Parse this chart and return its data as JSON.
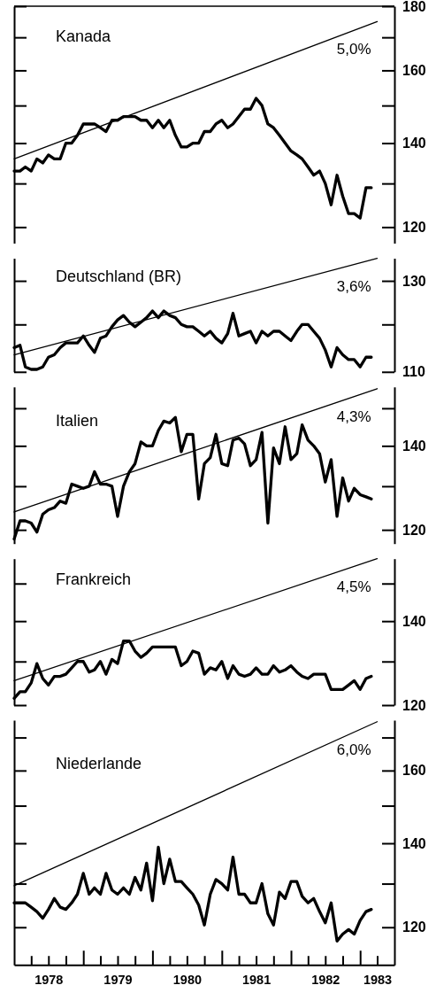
{
  "chart_data": [
    {
      "type": "line",
      "title": "Kanada",
      "log": true,
      "tick_labels": "y",
      "xlim": [
        "1978-01",
        "1983-07"
      ],
      "ylim": [
        116.5,
        180
      ],
      "yticks": [
        120,
        {
          "value": 130,
          "label": null
        },
        140,
        {
          "value": 150,
          "label": null
        },
        160,
        {
          "value": 170,
          "label": null
        },
        180
      ],
      "x": [
        "1978-01",
        "1978-02",
        "1978-03",
        "1978-04",
        "1978-05",
        "1978-06",
        "1978-07",
        "1978-08",
        "1978-09",
        "1978-10",
        "1978-11",
        "1978-12",
        "1979-01",
        "1979-02",
        "1979-03",
        "1979-04",
        "1979-05",
        "1979-06",
        "1979-07",
        "1979-08",
        "1979-09",
        "1979-10",
        "1979-11",
        "1979-12",
        "1980-01",
        "1980-02",
        "1980-03",
        "1980-04",
        "1980-05",
        "1980-06",
        "1980-07",
        "1980-08",
        "1980-09",
        "1980-10",
        "1980-11",
        "1980-12",
        "1981-01",
        "1981-02",
        "1981-03",
        "1981-04",
        "1981-05",
        "1981-06",
        "1981-07",
        "1981-08",
        "1981-09",
        "1981-10",
        "1981-11",
        "1981-12",
        "1982-01",
        "1982-02",
        "1982-03",
        "1982-04",
        "1982-05",
        "1982-06",
        "1982-07",
        "1982-08",
        "1982-09",
        "1982-10",
        "1982-11",
        "1982-12",
        "1983-01",
        "1983-02",
        "1983-03"
      ],
      "series": [
        {
          "color": "#000000",
          "values": [
            133,
            133,
            134,
            133,
            136,
            135,
            137,
            136,
            136,
            140,
            140,
            142,
            145,
            145,
            145,
            144,
            143,
            146,
            146,
            147,
            147,
            147,
            146,
            146,
            144,
            146,
            144,
            146,
            142,
            139,
            139,
            140,
            140,
            143,
            143,
            145,
            146,
            144,
            145,
            147,
            149,
            149,
            152,
            150,
            145,
            144,
            142,
            140,
            138,
            137,
            136,
            134,
            132,
            133,
            130,
            125,
            132,
            127,
            123,
            123,
            122,
            129,
            129
          ]
        },
        {
          "name": "5,0%",
          "color": "#000000",
          "x": [
            "1978-01",
            "1983-04"
          ],
          "values": [
            136,
            175
          ]
        }
      ]
    },
    {
      "type": "line",
      "title": "Deutschland (BR)",
      "log": true,
      "tick_labels": "y",
      "xlim": [
        "1978-01",
        "1983-07"
      ],
      "ylim": [
        110,
        135.5
      ],
      "yticks": [
        110,
        {
          "value": 120,
          "label": null
        },
        130
      ],
      "x": [
        "1978-01",
        "1978-02",
        "1978-03",
        "1978-04",
        "1978-05",
        "1978-06",
        "1978-07",
        "1978-08",
        "1978-09",
        "1978-10",
        "1978-11",
        "1978-12",
        "1979-01",
        "1979-02",
        "1979-03",
        "1979-04",
        "1979-05",
        "1979-06",
        "1979-07",
        "1979-08",
        "1979-09",
        "1979-10",
        "1979-11",
        "1979-12",
        "1980-01",
        "1980-02",
        "1980-03",
        "1980-04",
        "1980-05",
        "1980-06",
        "1980-07",
        "1980-08",
        "1980-09",
        "1980-10",
        "1980-11",
        "1980-12",
        "1981-01",
        "1981-02",
        "1981-03",
        "1981-04",
        "1981-05",
        "1981-06",
        "1981-07",
        "1981-08",
        "1981-09",
        "1981-10",
        "1981-11",
        "1981-12",
        "1982-01",
        "1982-02",
        "1982-03",
        "1982-04",
        "1982-05",
        "1982-06",
        "1982-07",
        "1982-08",
        "1982-09",
        "1982-10",
        "1982-11",
        "1982-12",
        "1983-01",
        "1983-02",
        "1983-03"
      ],
      "series": [
        {
          "color": "#000000",
          "values": [
            115,
            115.5,
            111,
            110.5,
            110.5,
            111,
            113,
            113.5,
            115,
            116,
            116,
            116,
            117.5,
            115.5,
            114,
            117,
            117.5,
            119.5,
            121,
            122,
            120.5,
            119.5,
            120.5,
            121.5,
            123,
            121.5,
            123,
            122,
            121.5,
            120,
            119.5,
            119.5,
            118.5,
            117.5,
            118.5,
            117,
            116,
            118,
            122.5,
            117.5,
            118,
            118.5,
            116,
            118.5,
            117.5,
            118.5,
            118.5,
            117.5,
            116.5,
            118.5,
            120,
            120,
            118.5,
            117,
            114.5,
            111,
            115,
            113.5,
            112.5,
            112.5,
            111,
            113,
            113
          ]
        },
        {
          "name": "3,6%",
          "color": "#000000",
          "x": [
            "1978-01",
            "1983-04"
          ],
          "values": [
            113.5,
            135.5
          ]
        }
      ]
    },
    {
      "type": "line",
      "title": "Italien",
      "log": true,
      "tick_labels": "y",
      "xlim": [
        "1978-01",
        "1983-07"
      ],
      "ylim": [
        117,
        156
      ],
      "yticks": [
        120,
        {
          "value": 130,
          "label": null
        },
        140,
        {
          "value": 150,
          "label": null
        }
      ],
      "x": [
        "1978-01",
        "1978-02",
        "1978-03",
        "1978-04",
        "1978-05",
        "1978-06",
        "1978-07",
        "1978-08",
        "1978-09",
        "1978-10",
        "1978-11",
        "1978-12",
        "1979-01",
        "1979-02",
        "1979-03",
        "1979-04",
        "1979-05",
        "1979-06",
        "1979-07",
        "1979-08",
        "1979-09",
        "1979-10",
        "1979-11",
        "1979-12",
        "1980-01",
        "1980-02",
        "1980-03",
        "1980-04",
        "1980-05",
        "1980-06",
        "1980-07",
        "1980-08",
        "1980-09",
        "1980-10",
        "1980-11",
        "1980-12",
        "1981-01",
        "1981-02",
        "1981-03",
        "1981-04",
        "1981-05",
        "1981-06",
        "1981-07",
        "1981-08",
        "1981-09",
        "1981-10",
        "1981-11",
        "1981-12",
        "1982-01",
        "1982-02",
        "1982-03",
        "1982-04",
        "1982-05",
        "1982-06",
        "1982-07",
        "1982-08",
        "1982-09",
        "1982-10",
        "1982-11",
        "1982-12",
        "1983-01",
        "1983-02",
        "1983-03"
      ],
      "series": [
        {
          "color": "#000000",
          "values": [
            118,
            122,
            122,
            121.5,
            119.5,
            123.5,
            124.5,
            125,
            126.5,
            126,
            130.5,
            130,
            129.5,
            130,
            133.5,
            130.5,
            130.5,
            130,
            123,
            130,
            133.5,
            135.5,
            141,
            140,
            140,
            144,
            146.5,
            146,
            147.5,
            138.5,
            143,
            143,
            127,
            135.5,
            137,
            143,
            135.5,
            135,
            141.5,
            142,
            140.5,
            135,
            136.5,
            143.5,
            121.5,
            139.5,
            135.5,
            145,
            136.5,
            138,
            145.5,
            141.5,
            140,
            138,
            131,
            136.5,
            123,
            132,
            126.5,
            129.5,
            128,
            127.5,
            127
          ]
        },
        {
          "name": "4,3%",
          "color": "#000000",
          "x": [
            "1978-01",
            "1983-04"
          ],
          "values": [
            124,
            155.5
          ]
        }
      ]
    },
    {
      "type": "line",
      "title": "Frankreich",
      "log": true,
      "tick_labels": "y",
      "xlim": [
        "1978-01",
        "1983-07"
      ],
      "ylim": [
        120,
        157
      ],
      "yticks": [
        120,
        {
          "value": 130,
          "label": null
        },
        140,
        {
          "value": 150,
          "label": null
        }
      ],
      "x": [
        "1978-01",
        "1978-02",
        "1978-03",
        "1978-04",
        "1978-05",
        "1978-06",
        "1978-07",
        "1978-08",
        "1978-09",
        "1978-10",
        "1978-11",
        "1978-12",
        "1979-01",
        "1979-02",
        "1979-03",
        "1979-04",
        "1979-05",
        "1979-06",
        "1979-07",
        "1979-08",
        "1979-09",
        "1979-10",
        "1979-11",
        "1979-12",
        "1980-01",
        "1980-02",
        "1980-03",
        "1980-04",
        "1980-05",
        "1980-06",
        "1980-07",
        "1980-08",
        "1980-09",
        "1980-10",
        "1980-11",
        "1980-12",
        "1981-01",
        "1981-02",
        "1981-03",
        "1981-04",
        "1981-05",
        "1981-06",
        "1981-07",
        "1981-08",
        "1981-09",
        "1981-10",
        "1981-11",
        "1981-12",
        "1982-01",
        "1982-02",
        "1982-03",
        "1982-04",
        "1982-05",
        "1982-06",
        "1982-07",
        "1982-08",
        "1982-09",
        "1982-10",
        "1982-11",
        "1982-12",
        "1983-01",
        "1983-02",
        "1983-03"
      ],
      "series": [
        {
          "color": "#000000",
          "values": [
            121.5,
            123,
            123,
            125,
            129.5,
            126,
            124.5,
            126.5,
            126.5,
            127,
            128.5,
            130,
            130,
            127.5,
            128,
            130,
            127,
            130.5,
            129.5,
            135,
            135,
            132.5,
            131,
            132,
            133.5,
            133.5,
            133.5,
            133.5,
            133.5,
            129,
            130,
            132.5,
            132,
            127,
            128.5,
            128,
            130,
            126,
            129,
            127,
            126.5,
            127,
            128.5,
            127,
            127,
            129,
            127.5,
            128,
            129,
            127.5,
            126.5,
            126,
            127,
            127,
            127,
            123.5,
            123.5,
            123.5,
            124.5,
            125.5,
            123.5,
            126,
            126.5
          ]
        },
        {
          "name": "4,5%",
          "color": "#000000",
          "x": [
            "1978-01",
            "1983-04"
          ],
          "values": [
            125.5,
            157
          ]
        }
      ]
    },
    {
      "type": "line",
      "title": "Niederlande",
      "log": true,
      "xlim": [
        "1978-01",
        "1983-07"
      ],
      "ylim": [
        112,
        175.5
      ],
      "yticks": [
        120,
        {
          "value": 130,
          "label": null
        },
        140,
        {
          "value": 150,
          "label": null
        },
        160,
        {
          "value": 170,
          "label": null
        }
      ],
      "xticks": [
        {
          "value": "1978-04",
          "label": null
        },
        {
          "value": "1978-07",
          "label": "1978"
        },
        {
          "value": "1978-10",
          "label": null
        },
        {
          "value": "1979-01",
          "label": null
        },
        {
          "value": "1979-04",
          "label": null
        },
        {
          "value": "1979-07",
          "label": "1979"
        },
        {
          "value": "1979-10",
          "label": null
        },
        {
          "value": "1980-01",
          "label": null
        },
        {
          "value": "1980-04",
          "label": null
        },
        {
          "value": "1980-07",
          "label": "1980"
        },
        {
          "value": "1980-10",
          "label": null
        },
        {
          "value": "1981-01",
          "label": null
        },
        {
          "value": "1981-04",
          "label": null
        },
        {
          "value": "1981-07",
          "label": "1981"
        },
        {
          "value": "1981-10",
          "label": null
        },
        {
          "value": "1982-01",
          "label": null
        },
        {
          "value": "1982-04",
          "label": null
        },
        {
          "value": "1982-07",
          "label": "1982"
        },
        {
          "value": "1982-10",
          "label": null
        },
        {
          "value": "1983-01",
          "label": null
        },
        {
          "value": "1983-04",
          "label": "1983"
        }
      ],
      "x": [
        "1978-01",
        "1978-02",
        "1978-03",
        "1978-04",
        "1978-05",
        "1978-06",
        "1978-07",
        "1978-08",
        "1978-09",
        "1978-10",
        "1978-11",
        "1978-12",
        "1979-01",
        "1979-02",
        "1979-03",
        "1979-04",
        "1979-05",
        "1979-06",
        "1979-07",
        "1979-08",
        "1979-09",
        "1979-10",
        "1979-11",
        "1979-12",
        "1980-01",
        "1980-02",
        "1980-03",
        "1980-04",
        "1980-05",
        "1980-06",
        "1980-07",
        "1980-08",
        "1980-09",
        "1980-10",
        "1980-11",
        "1980-12",
        "1981-01",
        "1981-02",
        "1981-03",
        "1981-04",
        "1981-05",
        "1981-06",
        "1981-07",
        "1981-08",
        "1981-09",
        "1981-10",
        "1981-11",
        "1981-12",
        "1982-01",
        "1982-02",
        "1982-03",
        "1982-04",
        "1982-05",
        "1982-06",
        "1982-07",
        "1982-08",
        "1982-09",
        "1982-10",
        "1982-11",
        "1982-12",
        "1983-01",
        "1983-02",
        "1983-03"
      ],
      "series": [
        {
          "color": "#000000",
          "values": [
            125.5,
            125.5,
            125.5,
            124.5,
            123.5,
            122,
            124,
            126.5,
            124.5,
            124,
            125.5,
            127.5,
            132.5,
            127.5,
            129,
            127.5,
            132.5,
            128.5,
            127.5,
            129,
            127.5,
            131.5,
            128.5,
            135,
            126,
            139,
            130,
            136,
            130.5,
            130.5,
            129,
            127.5,
            125,
            120.5,
            127.5,
            131,
            130,
            128.5,
            136.5,
            127.5,
            127.5,
            125.5,
            125.5,
            130,
            123,
            120.5,
            128,
            126.5,
            130.5,
            130.5,
            127,
            125.5,
            126.5,
            123.5,
            121,
            125.5,
            117,
            118.5,
            119.5,
            118.5,
            121.5,
            123.5,
            124
          ]
        },
        {
          "name": "6,0%",
          "color": "#000000",
          "x": [
            "1978-01",
            "1983-04"
          ],
          "values": [
            129.5,
            175
          ]
        }
      ]
    }
  ]
}
